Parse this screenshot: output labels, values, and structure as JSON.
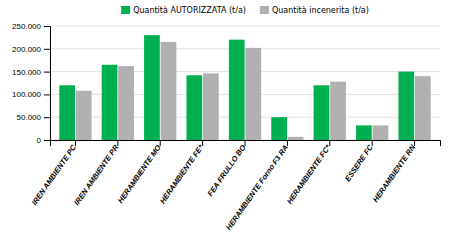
{
  "chart_data": {
    "type": "bar",
    "categories": [
      "IREN AMBIENTE PC",
      "IREN AMBIENTE PR",
      "HERAMBIENTE MO",
      "HERAMBIENTE FE*",
      "FEA FRULLO BO",
      "HERAMBIENTE Forno F3 RA",
      "HERAMBIENTE FC*",
      "ESSERE FC",
      "HERAMBIENTE RN"
    ],
    "series": [
      {
        "name": "Quantità AUTORIZZATA (t/a)",
        "color": "#00b050",
        "values": [
          120000,
          165000,
          230000,
          142000,
          220000,
          50000,
          120000,
          32000,
          150000
        ]
      },
      {
        "name": "Quantità incenerita (t/a)",
        "color": "#b0b0b0",
        "values": [
          108000,
          162000,
          215000,
          146000,
          202000,
          7000,
          128000,
          32000,
          140000
        ]
      }
    ],
    "ylim": [
      0,
      250000
    ],
    "yticks": [
      0,
      {
        "value": 50000,
        "label": "50.000"
      },
      {
        "value": 100000,
        "label": "100.000"
      },
      {
        "value": 150000,
        "label": "150.000"
      },
      {
        "value": 200000,
        "label": "200.000"
      },
      {
        "value": 250000,
        "label": "250.000"
      }
    ],
    "grid": true,
    "legend": "top"
  }
}
